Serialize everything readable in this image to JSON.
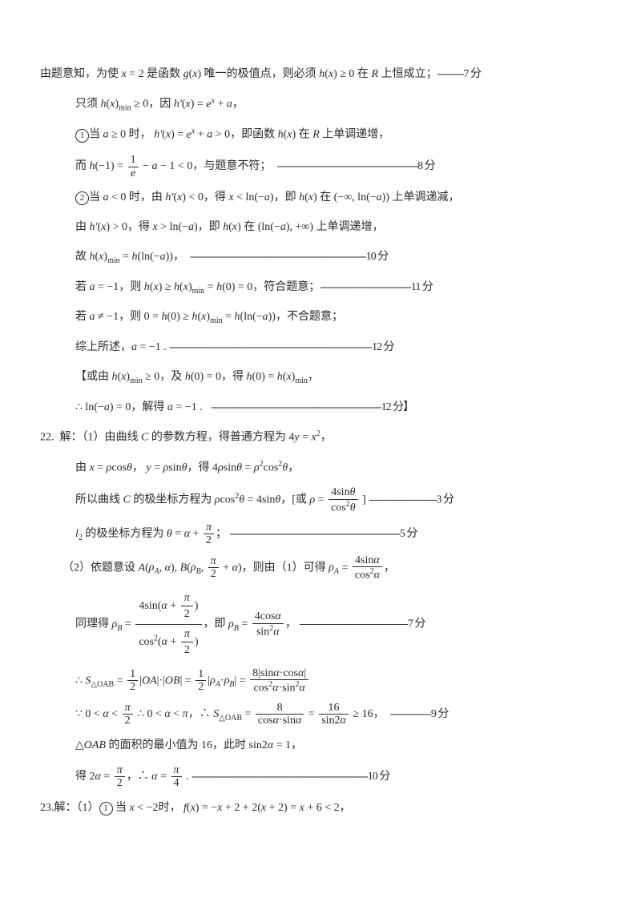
{
  "p1": "由题意知，为使 x = 2 是函数 g(x) 唯一的极值点，则必须 h(x) ≥ 0 在 R 上恒成立；",
  "s1": "---------7 分",
  "p2": "只须 h(x)_min ≥ 0，因 h'(x) = e^x + a，",
  "p3a": "当 a ≥ 0 时， h'(x) = e^x + a > 0，即函数 h(x) 在 R 上单调递增，",
  "p4": "而 h(−1) = 1/e − a − 1 < 0，与题意不符；",
  "s4": "------------------------------------------------8 分",
  "p5": "当 a < 0 时，由 h'(x) < 0，得 x < ln(−a)，即 h(x) 在 (−∞, ln(−a)) 上单调递减，",
  "p6": "由 h'(x) > 0，得 x > ln(−a)，即 h(x) 在 (ln(−a), +∞) 上单调递增，",
  "p7": "故 h(x)_min = h(ln(−a))，",
  "s7": "------------------------------------------------------------10 分",
  "p8": "若 a = −1，则 h(x) ≥ h(x)_min = h(0) = 0，符合题意；",
  "s8": "-------------------------------11 分",
  "p9": "若 a ≠ −1，则 0 = h(0) ≥ h(x)_min = h(ln(−a))，不合题意；",
  "p10": "综上所述，a = −1 .",
  "s10": "---------------------------------------------------------------------12 分",
  "p11": "【或由 h(x)_min ≥ 0，及 h(0) = 0，得 h(0) = h(x)_min，",
  "p12": "∴ ln(−a) = 0，解得 a = −1 .",
  "s12": "----------------------------------------------------------12 分】",
  "q22a": "22.  解：（1）由曲线 C 的参数方程，得普通方程为 4y = x²，",
  "p13": "由 x = ρcosθ， y = ρsinθ，得 4ρsinθ = ρ²cos²θ，",
  "p14": "所以曲线 C 的极坐标方程为 ρcos²θ = 4sinθ，[或 ρ = 4sinθ / cos²θ ]",
  "s14": "-----------------------3 分",
  "p15": "l₂ 的极坐标方程为 θ = α + π/2；",
  "s15": "----------------------------------------------------------5 分",
  "q22b": "（2）依题意设 A(ρ_A, α), B(ρ_B, π/2 + α)，则由（1）可得 ρ_A = 4sinα / cos²α，",
  "p16": "同理得 ρ_B = 4sin(α+π/2) / cos²(α+π/2)，即 ρ_B = 4cosα / sin²α，",
  "s16": "-------------------------------------7 分",
  "p17": "∴ S_△OAB = ½|OA|·|OB| = ½|ρ_A·ρ_B| = 8|sinα·cosα| / (cos²α·sin²α)",
  "p18": "∵ 0 < α < π/2  ∴ 0 < α < π，∴ S_△OAB = 8 / (cosα·sinα) = 16 / sin2α ≥ 16，",
  "s18": "--------------9 分",
  "p19": "△OAB 的面积的最小值为 16，此时 sin2α = 1，",
  "p20": "得 2α = π/2，∴ α = π/4 .",
  "s20": "------------------------------------------------------------10 分",
  "q23": "23.解：（1）① 当 x < −2时， f(x) = −x + 2 + 2(x + 2) = x + 6 < 2，"
}
